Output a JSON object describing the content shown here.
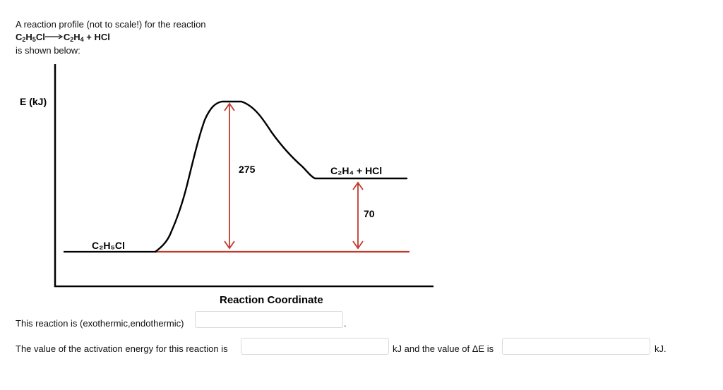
{
  "intro": {
    "line1": "A reaction profile (not to scale!) for the reaction",
    "reactant_formula": "C",
    "reactant_formula_parts": [
      "C",
      "2",
      "H",
      "5",
      "Cl"
    ],
    "product_formula_parts": [
      "C",
      "2",
      "H",
      "4",
      " + HCl"
    ],
    "line3": "is shown below:"
  },
  "diagram": {
    "y_axis_label": "E (kJ)",
    "x_axis_label": "Reaction Coordinate",
    "reactant_label": "C₂H₅Cl",
    "product_label": "C₂H₄ + HCl",
    "activation_energy_label": "275",
    "delta_e_label": "70",
    "curve_color": "#000000",
    "arrow_color": "#c0392b"
  },
  "questions": {
    "q1_text": "This reaction is (exothermic,endothermic)",
    "q1_value": "",
    "q1_end": ".",
    "q2_text": "The value of the activation energy for this reaction is",
    "q2_value": "",
    "q2_mid": "kJ and the value of ΔE is",
    "q2_value_b": "",
    "q2_end": "kJ."
  }
}
